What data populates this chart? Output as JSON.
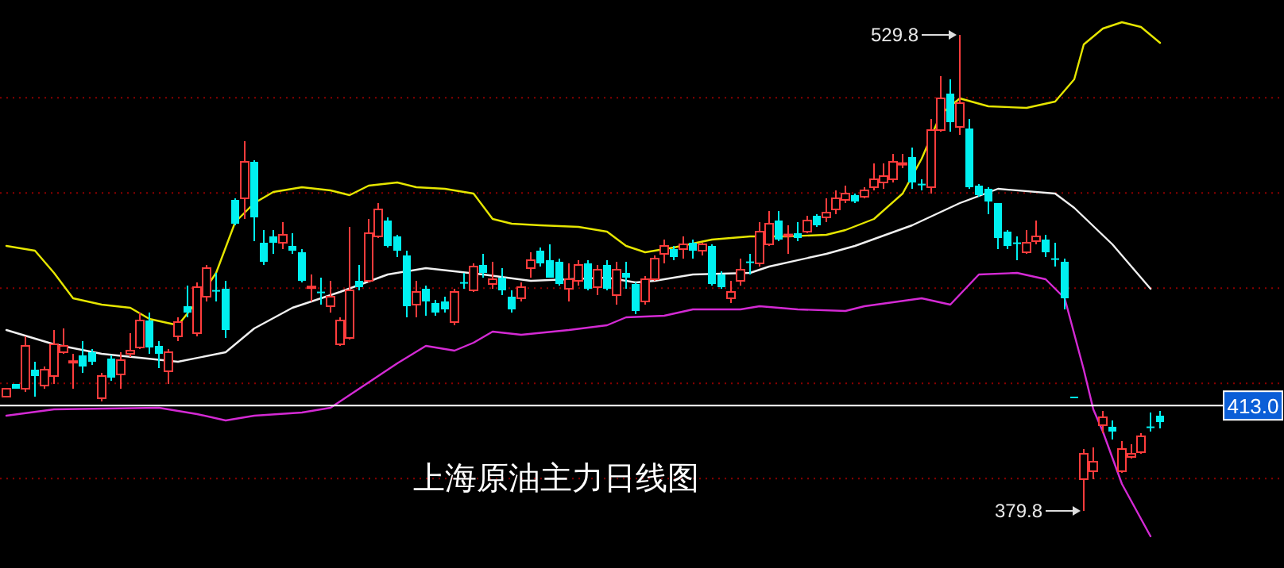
{
  "chart_data": {
    "type": "candlestick",
    "title": "上海原油主力日线图",
    "categories": [
      null,
      null,
      null,
      null,
      null,
      null,
      null,
      null,
      null,
      null,
      null,
      null,
      null,
      null,
      null,
      null,
      null,
      null,
      null,
      null,
      null,
      null,
      null,
      null,
      null,
      null,
      null,
      null,
      null,
      null,
      null,
      null,
      null,
      null,
      null,
      null,
      null,
      null,
      null,
      null,
      null,
      null,
      null,
      null,
      null,
      null,
      null,
      null,
      null,
      null,
      null,
      null,
      null,
      null,
      null,
      null,
      null,
      null,
      null,
      null,
      null,
      null,
      null,
      null,
      null,
      null,
      null,
      null,
      null,
      null,
      null,
      null,
      null,
      null,
      null,
      null,
      null,
      null,
      null,
      null,
      null,
      null,
      null,
      null,
      null,
      null,
      null,
      null,
      null,
      null,
      null,
      null,
      null,
      null,
      null,
      null,
      null,
      null,
      null,
      null,
      null,
      null,
      null,
      null,
      null,
      null,
      null,
      null,
      null,
      null,
      null,
      null,
      null,
      null,
      null,
      null,
      null,
      null,
      null,
      null,
      null,
      null
    ],
    "ohlc": [
      [
        415.8,
        418.3,
        415.8,
        418.3
      ],
      [
        419.8,
        419.8,
        418.3,
        418.3
      ],
      [
        418.3,
        434.8,
        417.3,
        431.8
      ],
      [
        424.3,
        426.8,
        415.8,
        422.3
      ],
      [
        419.3,
        425.3,
        418.3,
        424.3
      ],
      [
        422.3,
        436.8,
        419.8,
        432.3
      ],
      [
        429.8,
        437.3,
        429.3,
        431.8
      ],
      [
        426.8,
        429.3,
        418.3,
        427.0
      ],
      [
        428.8,
        433.3,
        423.3,
        425.3
      ],
      [
        429.8,
        430.8,
        425.8,
        426.8
      ],
      [
        415.3,
        423.3,
        414.3,
        422.3
      ],
      [
        427.8,
        428.8,
        420.8,
        421.8
      ],
      [
        422.8,
        429.8,
        418.3,
        427.3
      ],
      [
        429.3,
        435.8,
        428.3,
        430.3
      ],
      [
        431.3,
        442.3,
        430.8,
        439.8
      ],
      [
        439.8,
        442.3,
        429.3,
        431.3
      ],
      [
        431.8,
        433.3,
        424.8,
        429.3
      ],
      [
        423.8,
        430.8,
        419.8,
        429.8
      ],
      [
        434.8,
        440.8,
        433.3,
        439.3
      ],
      [
        444.3,
        450.8,
        440.8,
        442.3
      ],
      [
        435.8,
        451.8,
        434.8,
        450.3
      ],
      [
        447.3,
        457.3,
        445.8,
        456.3
      ],
      [
        449.4,
        454.8,
        445.8,
        449.3
      ],
      [
        449.8,
        452.3,
        434.3,
        436.8
      ],
      [
        477.8,
        478.3,
        469.8,
        470.3
      ],
      [
        478.3,
        496.3,
        471.8,
        489.8
      ],
      [
        489.8,
        490.3,
        464.8,
        472.3
      ],
      [
        464.3,
        468.3,
        457.3,
        458.3
      ],
      [
        466.3,
        468.3,
        460.8,
        464.3
      ],
      [
        464.3,
        470.8,
        462.3,
        466.8
      ],
      [
        463.3,
        467.3,
        460.8,
        461.8
      ],
      [
        461.3,
        462.3,
        451.8,
        452.3
      ],
      [
        450.2,
        454.3,
        445.8,
        450.5
      ],
      [
        448.9,
        453.3,
        444.8,
        448.7
      ],
      [
        444.3,
        452.3,
        442.3,
        447.3
      ],
      [
        432.3,
        440.8,
        431.8,
        439.8
      ],
      [
        434.3,
        469.3,
        433.8,
        449.3
      ],
      [
        452.3,
        457.3,
        449.3,
        450.3
      ],
      [
        452.3,
        471.8,
        451.8,
        467.3
      ],
      [
        466.3,
        476.8,
        465.8,
        474.8
      ],
      [
        471.3,
        472.3,
        462.8,
        463.3
      ],
      [
        466.3,
        466.8,
        459.8,
        461.8
      ],
      [
        460.3,
        461.8,
        440.8,
        444.3
      ],
      [
        444.8,
        452.3,
        440.8,
        448.8
      ],
      [
        449.8,
        450.8,
        441.3,
        445.8
      ],
      [
        445.3,
        446.3,
        441.3,
        442.3
      ],
      [
        445.8,
        447.3,
        442.3,
        443.3
      ],
      [
        439.3,
        449.8,
        438.3,
        448.8
      ],
      [
        451.9,
        454.8,
        449.8,
        451.7
      ],
      [
        449.3,
        457.8,
        448.8,
        456.8
      ],
      [
        457.3,
        460.8,
        453.3,
        454.8
      ],
      [
        451.3,
        458.3,
        449.8,
        452.8
      ],
      [
        453.3,
        456.3,
        447.8,
        449.3
      ],
      [
        447.3,
        449.3,
        442.3,
        443.3
      ],
      [
        446.8,
        451.8,
        445.8,
        450.3
      ],
      [
        456.3,
        461.3,
        453.3,
        458.8
      ],
      [
        461.8,
        462.8,
        456.8,
        457.8
      ],
      [
        458.8,
        463.8,
        453.3,
        453.3
      ],
      [
        458.3,
        459.3,
        450.8,
        451.3
      ],
      [
        449.8,
        457.8,
        445.8,
        452.8
      ],
      [
        452.3,
        458.8,
        450.8,
        457.3
      ],
      [
        457.8,
        458.8,
        449.3,
        449.8
      ],
      [
        450.3,
        457.3,
        447.8,
        455.8
      ],
      [
        457.3,
        458.8,
        449.3,
        449.8
      ],
      [
        447.8,
        458.3,
        444.8,
        455.8
      ],
      [
        454.8,
        458.3,
        449.8,
        453.3
      ],
      [
        451.3,
        451.8,
        441.8,
        442.8
      ],
      [
        445.8,
        453.8,
        444.8,
        452.8
      ],
      [
        452.8,
        460.3,
        452.3,
        459.3
      ],
      [
        460.8,
        465.3,
        457.8,
        463.3
      ],
      [
        462.3,
        463.3,
        458.8,
        459.8
      ],
      [
        462.3,
        466.3,
        459.3,
        463.8
      ],
      [
        464.3,
        465.3,
        459.3,
        461.8
      ],
      [
        461.8,
        464.3,
        460.3,
        463.8
      ],
      [
        463.3,
        463.8,
        450.8,
        451.3
      ],
      [
        454.3,
        455.3,
        449.8,
        450.3
      ],
      [
        446.8,
        452.3,
        445.3,
        448.8
      ],
      [
        452.3,
        459.3,
        450.8,
        455.8
      ],
      [
        458.4,
        460.8,
        454.3,
        458.2
      ],
      [
        457.8,
        470.8,
        456.8,
        467.8
      ],
      [
        463.8,
        474.3,
        463.3,
        470.3
      ],
      [
        471.3,
        474.3,
        464.8,
        465.3
      ],
      [
        466.7,
        469.8,
        460.8,
        466.9
      ],
      [
        467.3,
        470.8,
        464.8,
        465.8
      ],
      [
        467.8,
        472.8,
        467.3,
        471.3
      ],
      [
        472.8,
        473.3,
        469.3,
        469.8
      ],
      [
        472.3,
        478.3,
        470.8,
        473.8
      ],
      [
        474.8,
        480.8,
        473.3,
        478.3
      ],
      [
        477.8,
        482.3,
        476.8,
        479.8
      ],
      [
        479.3,
        479.8,
        476.8,
        477.3
      ],
      [
        478.8,
        481.8,
        478.3,
        480.8
      ],
      [
        481.8,
        489.3,
        480.8,
        484.3
      ],
      [
        483.3,
        489.3,
        481.3,
        485.3
      ],
      [
        484.3,
        492.3,
        483.3,
        489.8
      ],
      [
        489.2,
        492.3,
        487.8,
        489.4
      ],
      [
        491.3,
        494.3,
        481.3,
        483.3
      ],
      [
        482.9,
        484.3,
        480.8,
        482.7
      ],
      [
        481.8,
        503.3,
        479.8,
        499.8
      ],
      [
        499.8,
        516.8,
        499.3,
        509.8
      ],
      [
        511.3,
        515.8,
        499.3,
        502.3
      ],
      [
        500.8,
        529.8,
        498.3,
        508.3
      ],
      [
        500.3,
        503.3,
        481.3,
        481.8
      ],
      [
        482.3,
        482.8,
        478.8,
        479.3
      ],
      [
        481.3,
        481.8,
        473.3,
        477.3
      ],
      [
        476.8,
        476.8,
        462.3,
        465.8
      ],
      [
        467.8,
        468.3,
        462.3,
        463.3
      ],
      [
        464.4,
        466.3,
        458.8,
        464.2
      ],
      [
        461.3,
        468.3,
        460.8,
        464.3
      ],
      [
        464.8,
        471.3,
        463.8,
        466.3
      ],
      [
        465.3,
        466.8,
        459.8,
        461.3
      ],
      [
        459.4,
        464.3,
        456.8,
        459.2
      ],
      [
        458.3,
        459.3,
        443.3,
        446.8
      ],
      [
        415.8,
        415.8,
        415.8,
        415.8
      ],
      [
        389.8,
        399.3,
        379.8,
        397.8
      ],
      [
        392.3,
        399.8,
        389.8,
        395.3
      ],
      [
        406.8,
        411.3,
        404.3,
        409.3
      ],
      [
        406.3,
        408.3,
        402.3,
        404.8
      ],
      [
        392.3,
        401.8,
        391.8,
        399.3
      ],
      [
        396.8,
        400.8,
        396.3,
        397.8
      ],
      [
        398.3,
        404.3,
        397.8,
        403.3
      ],
      [
        406.4,
        410.8,
        404.8,
        406.2
      ],
      [
        409.8,
        411.3,
        405.8,
        407.8
      ]
    ],
    "colors": [
      "#ff3c3c",
      "#00f0f0",
      "#ff3c3c",
      "#00f0f0",
      "#ff3c3c",
      "#ff3c3c",
      "#ff3c3c",
      "#ff3c3c",
      "#00f0f0",
      "#00f0f0",
      "#ff3c3c",
      "#00f0f0",
      "#ff3c3c",
      "#ff3c3c",
      "#ff3c3c",
      "#00f0f0",
      "#00f0f0",
      "#ff3c3c",
      "#ff3c3c",
      "#00f0f0",
      "#ff3c3c",
      "#ff3c3c",
      "#00f0f0",
      "#00f0f0",
      "#00f0f0",
      "#ff3c3c",
      "#00f0f0",
      "#00f0f0",
      "#00f0f0",
      "#ff3c3c",
      "#00f0f0",
      "#00f0f0",
      "#ff3c3c",
      "#00f0f0",
      "#ff3c3c",
      "#ff3c3c",
      "#ff3c3c",
      "#00f0f0",
      "#ff3c3c",
      "#ff3c3c",
      "#00f0f0",
      "#00f0f0",
      "#00f0f0",
      "#ff3c3c",
      "#00f0f0",
      "#00f0f0",
      "#00f0f0",
      "#ff3c3c",
      "#00f0f0",
      "#ff3c3c",
      "#00f0f0",
      "#ff3c3c",
      "#00f0f0",
      "#00f0f0",
      "#ff3c3c",
      "#ff3c3c",
      "#00f0f0",
      "#00f0f0",
      "#00f0f0",
      "#ff3c3c",
      "#ff3c3c",
      "#00f0f0",
      "#ff3c3c",
      "#00f0f0",
      "#ff3c3c",
      "#00f0f0",
      "#00f0f0",
      "#ff3c3c",
      "#ff3c3c",
      "#ff3c3c",
      "#00f0f0",
      "#ff3c3c",
      "#00f0f0",
      "#ff3c3c",
      "#00f0f0",
      "#00f0f0",
      "#ff3c3c",
      "#ff3c3c",
      "#00f0f0",
      "#ff3c3c",
      "#ff3c3c",
      "#00f0f0",
      "#ff3c3c",
      "#00f0f0",
      "#ff3c3c",
      "#00f0f0",
      "#ff3c3c",
      "#ff3c3c",
      "#ff3c3c",
      "#00f0f0",
      "#ff3c3c",
      "#ff3c3c",
      "#ff3c3c",
      "#ff3c3c",
      "#ff3c3c",
      "#00f0f0",
      "#00f0f0",
      "#ff3c3c",
      "#ff3c3c",
      "#00f0f0",
      "#ff3c3c",
      "#00f0f0",
      "#00f0f0",
      "#00f0f0",
      "#00f0f0",
      "#00f0f0",
      "#00f0f0",
      "#ff3c3c",
      "#ff3c3c",
      "#00f0f0",
      "#00f0f0",
      "#00f0f0",
      "#00f0f0",
      "#ff3c3c",
      "#ff3c3c",
      "#ff3c3c",
      "#00f0f0",
      "#ff3c3c",
      "#ff3c3c",
      "#ff3c3c",
      "#00f0f0",
      "#00f0f0"
    ],
    "series": [
      {
        "type": "line",
        "color": "#e6e600",
        "values": [
          463.3,
          null,
          null,
          461.8,
          null,
          454.8,
          null,
          446.8,
          null,
          null,
          444.8,
          null,
          null,
          443.8,
          null,
          440.3,
          null,
          null,
          438.3,
          null,
          445.8,
          null,
          454.8,
          null,
          470.8,
          null,
          476.8,
          null,
          480.3,
          null,
          null,
          481.8,
          null,
          null,
          480.8,
          null,
          479.3,
          null,
          482.3,
          null,
          null,
          483.3,
          null,
          481.8,
          null,
          null,
          481.3,
          null,
          null,
          479.8,
          null,
          471.8,
          null,
          470.3,
          null,
          null,
          469.8,
          null,
          null,
          null,
          469.3,
          null,
          null,
          467.8,
          null,
          463.3,
          null,
          461.3,
          null,
          null,
          462.8,
          null,
          null,
          null,
          465.3,
          null,
          null,
          null,
          466.3,
          null,
          null,
          null,
          466.3,
          null,
          null,
          null,
          466.8,
          null,
          468.3,
          null,
          null,
          471.8,
          null,
          null,
          479.8,
          null,
          490.8,
          null,
          504.8,
          null,
          509.8,
          null,
          null,
          507.3,
          null,
          null,
          null,
          506.8,
          null,
          null,
          508.8,
          null,
          515.8,
          526.8,
          null,
          531.8,
          null,
          533.8,
          null,
          532.3,
          null,
          527.3
        ]
      },
      {
        "type": "line",
        "color": "#f0f0f0",
        "values": [
          436.8,
          null,
          null,
          null,
          null,
          432.3,
          null,
          null,
          null,
          null,
          429.3,
          null,
          null,
          null,
          null,
          null,
          null,
          null,
          426.8,
          null,
          null,
          null,
          null,
          429.8,
          null,
          null,
          437.3,
          null,
          null,
          null,
          443.8,
          null,
          null,
          null,
          null,
          448.8,
          null,
          null,
          null,
          null,
          454.3,
          null,
          null,
          null,
          456.3,
          null,
          null,
          null,
          null,
          null,
          454.3,
          null,
          null,
          null,
          null,
          452.3,
          null,
          null,
          null,
          null,
          null,
          null,
          null,
          453.3,
          null,
          null,
          451.8,
          null,
          452.3,
          null,
          null,
          null,
          454.3,
          null,
          null,
          null,
          null,
          null,
          454.8,
          null,
          456.8,
          null,
          null,
          null,
          null,
          null,
          460.8,
          null,
          null,
          463.3,
          null,
          null,
          null,
          null,
          null,
          469.8,
          null,
          null,
          null,
          null,
          476.8,
          null,
          null,
          null,
          481.3,
          null,
          null,
          null,
          null,
          null,
          479.8,
          null,
          475.3,
          null,
          null,
          null,
          463.8,
          null,
          null,
          null,
          449.8,
          null
        ]
      },
      {
        "type": "line",
        "color": "#d42ad4",
        "values": [
          409.8,
          null,
          null,
          null,
          null,
          411.8,
          null,
          null,
          null,
          null,
          null,
          null,
          null,
          null,
          null,
          null,
          412.3,
          null,
          null,
          null,
          410.3,
          null,
          null,
          408.3,
          null,
          null,
          409.8,
          null,
          null,
          null,
          null,
          410.8,
          null,
          null,
          412.3,
          null,
          null,
          null,
          420.3,
          null,
          null,
          426.3,
          null,
          null,
          431.8,
          null,
          null,
          430.3,
          null,
          432.8,
          null,
          436.3,
          null,
          null,
          435.3,
          null,
          null,
          null,
          null,
          436.8,
          null,
          null,
          null,
          438.3,
          null,
          440.8,
          null,
          null,
          null,
          441.3,
          null,
          null,
          443.3,
          null,
          null,
          null,
          null,
          443.3,
          null,
          444.3,
          null,
          null,
          null,
          443.3,
          null,
          null,
          null,
          null,
          442.8,
          null,
          444.3,
          null,
          null,
          null,
          null,
          null,
          446.8,
          null,
          null,
          444.8,
          null,
          null,
          454.3,
          null,
          null,
          null,
          454.8,
          null,
          null,
          452.8,
          null,
          446.8,
          null,
          424.3,
          411.8,
          404.8,
          null,
          388.3,
          null,
          null,
          371.8,
          null
        ]
      }
    ],
    "yticks": [
      {
        "value": 510,
        "label": null
      },
      {
        "value": 480,
        "label": null
      },
      {
        "value": 450,
        "label": null
      },
      {
        "value": 420,
        "label": null
      },
      {
        "value": 390,
        "label": null
      }
    ],
    "grid": "y",
    "ref_lines": [
      {
        "axis": "y",
        "value": 413,
        "label": "413.0",
        "color": "#ffffff"
      }
    ],
    "annotations": [
      "529.8",
      "379.8"
    ]
  }
}
